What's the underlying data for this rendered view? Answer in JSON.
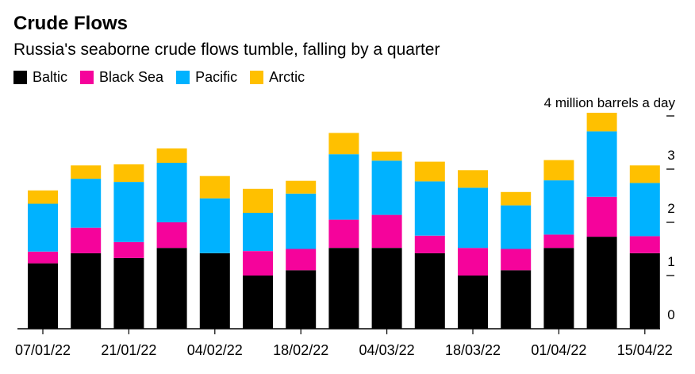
{
  "header": {
    "title": "Crude Flows",
    "subtitle": "Russia's seaborne crude flows tumble, falling by a quarter"
  },
  "legend": [
    {
      "label": "Baltic",
      "color": "#000000"
    },
    {
      "label": "Black Sea",
      "color": "#f5039b"
    },
    {
      "label": "Pacific",
      "color": "#00b2ff"
    },
    {
      "label": "Arctic",
      "color": "#ffc000"
    }
  ],
  "chart_data": {
    "type": "bar",
    "stacked": true,
    "title": "Crude Flows",
    "subtitle": "Russia's seaborne crude flows tumble, falling by a quarter",
    "unit_label": "4 million barrels a day",
    "xlabel": "",
    "ylabel": "",
    "ylim": [
      0,
      4
    ],
    "yticks": [
      "0",
      "1",
      "2",
      "3",
      "4"
    ],
    "x_tick_labels": [
      "07/01/22",
      "21/01/22",
      "04/02/22",
      "18/02/22",
      "04/03/22",
      "18/03/22",
      "01/04/22",
      "15/04/22"
    ],
    "categories": [
      "07/01/22",
      "14/01/22",
      "21/01/22",
      "28/01/22",
      "04/02/22",
      "11/02/22",
      "18/02/22",
      "25/02/22",
      "04/03/22",
      "11/03/22",
      "18/03/22",
      "25/03/22",
      "01/04/22",
      "08/04/22",
      "15/04/22"
    ],
    "series": [
      {
        "name": "Baltic",
        "color": "#000000",
        "values": [
          1.23,
          1.42,
          1.33,
          1.52,
          1.42,
          1.0,
          1.1,
          1.52,
          1.52,
          1.42,
          1.0,
          1.1,
          1.52,
          1.73,
          1.42
        ]
      },
      {
        "name": "Black Sea",
        "color": "#f5039b",
        "values": [
          0.22,
          0.48,
          0.3,
          0.48,
          0.0,
          0.46,
          0.4,
          0.53,
          0.62,
          0.33,
          0.52,
          0.4,
          0.25,
          0.75,
          0.32
        ]
      },
      {
        "name": "Pacific",
        "color": "#00b2ff",
        "values": [
          0.9,
          0.92,
          1.13,
          1.12,
          1.03,
          0.72,
          1.04,
          1.23,
          1.02,
          1.02,
          1.13,
          0.82,
          1.02,
          1.23,
          1.0
        ]
      },
      {
        "name": "Arctic",
        "color": "#ffc000",
        "values": [
          0.25,
          0.25,
          0.33,
          0.27,
          0.42,
          0.45,
          0.24,
          0.4,
          0.17,
          0.37,
          0.33,
          0.25,
          0.38,
          0.35,
          0.33
        ]
      }
    ]
  }
}
